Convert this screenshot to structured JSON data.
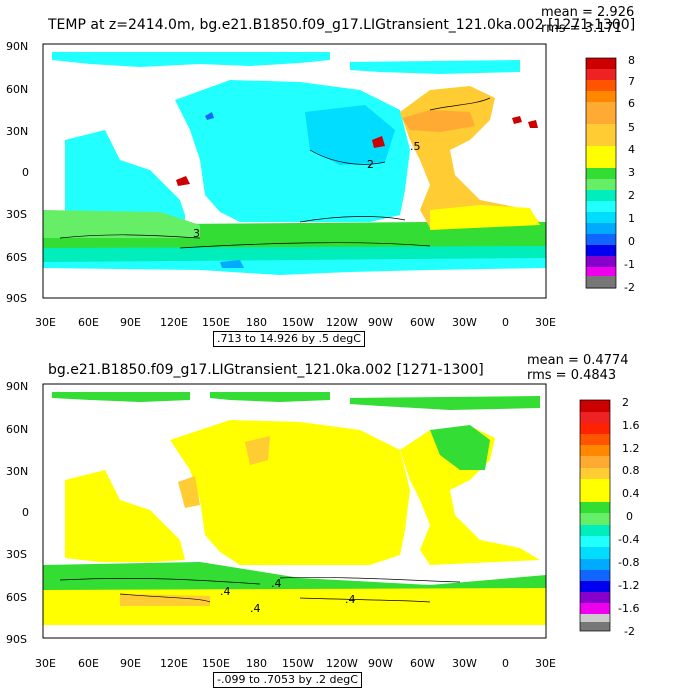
{
  "panel1": {
    "title": "TEMP at z=2414.0m, bg.e21.B1850.f09_g17.LIGtransient_121.0ka.002 [1271-1300]",
    "mean": "mean = 2.926",
    "rms": "rms = 3.171",
    "range_note": ".713 to 14.926 by .5 degC",
    "x_ticks": [
      "30E",
      "60E",
      "90E",
      "120E",
      "150E",
      "180",
      "150W",
      "120W",
      "90W",
      "60W",
      "30W",
      "0",
      "30E"
    ],
    "y_ticks": [
      "90N",
      "60N",
      "30N",
      "0",
      "30S",
      "60S",
      "90S"
    ],
    "colorbar_labels": [
      "8",
      "7",
      "6",
      "5",
      "4",
      "3",
      "2",
      "1",
      "0",
      "-1",
      "-2"
    ],
    "contour_labels": [
      "2",
      "3",
      ".5"
    ]
  },
  "panel2": {
    "title": "bg.e21.B1850.f09_g17.LIGtransient_121.0ka.002 [1271-1300]",
    "title_overlap": "e21.B1850.f09_g",
    "mean": "mean = 0.4774",
    "rms": "rms = 0.4843",
    "range_note": "-.099 to .7053 by .2 degC",
    "x_ticks": [
      "30E",
      "60E",
      "90E",
      "120E",
      "150E",
      "180",
      "150W",
      "120W",
      "90W",
      "60W",
      "30W",
      "0",
      "30E"
    ],
    "y_ticks": [
      "90N",
      "60N",
      "30N",
      "0",
      "30S",
      "60S",
      "90S"
    ],
    "colorbar_labels": [
      "2",
      "1.6",
      "1.2",
      "0.8",
      "0.4",
      "0",
      "-0.4",
      "-0.8",
      "-1.2",
      "-1.6",
      "-2"
    ],
    "contour_labels": [
      ".4",
      ".4",
      ".4",
      ".4"
    ]
  },
  "colors": {
    "palette_top_to_bottom": [
      "#cc0000",
      "#ee2222",
      "#ff5500",
      "#ff8800",
      "#ffaa33",
      "#ffcc33",
      "#ffff00",
      "#33dd33",
      "#66ee66",
      "#00eebb",
      "#22ffff",
      "#00ddff",
      "#00aaff",
      "#1166ff",
      "#0000ee",
      "#8800cc",
      "#ee00ee",
      "#cccccc",
      "#777777"
    ],
    "land": "#ffffff",
    "missing": "#ffffff"
  }
}
